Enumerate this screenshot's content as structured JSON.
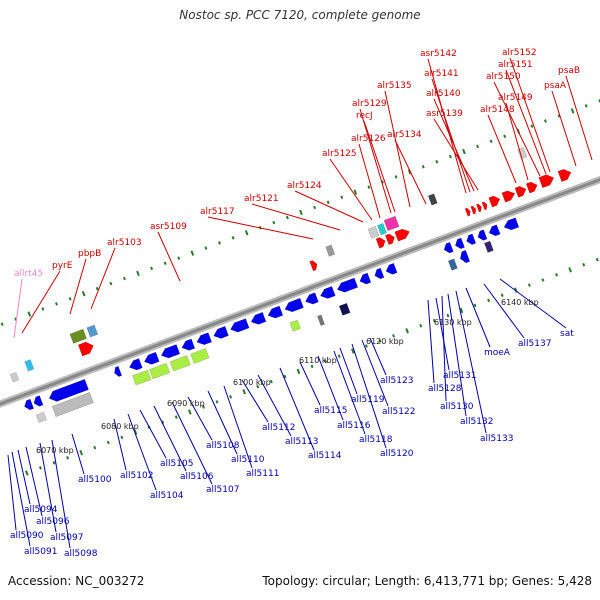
{
  "title": "Nostoc sp. PCC 7120, complete genome",
  "footer": {
    "accession": "Accession: NC_003272",
    "summary": "Topology: circular; Length: 6,413,771 bp; Genes: 5,428"
  },
  "colors": {
    "forward_label": "#cc0000",
    "reverse_label": "#0000aa",
    "rna_label": "#ee88cc",
    "forward_gene": "#ff0000",
    "reverse_gene": "#0000ee",
    "backbone": "#888888",
    "tick": "#2a7a2a"
  },
  "ticks": [
    "6070 kbp",
    "6080 kbp",
    "6090 kbp",
    "6100 kbp",
    "6110 kbp",
    "6120 kbp",
    "6130 kbp",
    "6140 kbp"
  ],
  "forward_labels": [
    "allrt45",
    "pyrE",
    "pbpB",
    "alr5103",
    "asr5109",
    "alr5117",
    "alr5121",
    "alr5124",
    "alr5125",
    "alr5126",
    "alr5129",
    "recJ",
    "alr5135",
    "alr5134",
    "asr5142",
    "alr5141",
    "alr5140",
    "asr5139",
    "alr5152",
    "alr5151",
    "alr5150",
    "alr5149",
    "alr5148",
    "psaB",
    "psaA"
  ],
  "reverse_labels": [
    "all5090",
    "all5091",
    "all5094",
    "all5096",
    "all5097",
    "all5098",
    "all5100",
    "all5102",
    "all5104",
    "all5105",
    "all5106",
    "all5107",
    "all5108",
    "all5110",
    "all5111",
    "all5112",
    "all5113",
    "all5114",
    "all5115",
    "all5116",
    "all5118",
    "all5119",
    "all5120",
    "all5122",
    "all5123",
    "all5128",
    "all5131",
    "all5130",
    "all5132",
    "all5133",
    "moeA",
    "all5137",
    "sat"
  ]
}
